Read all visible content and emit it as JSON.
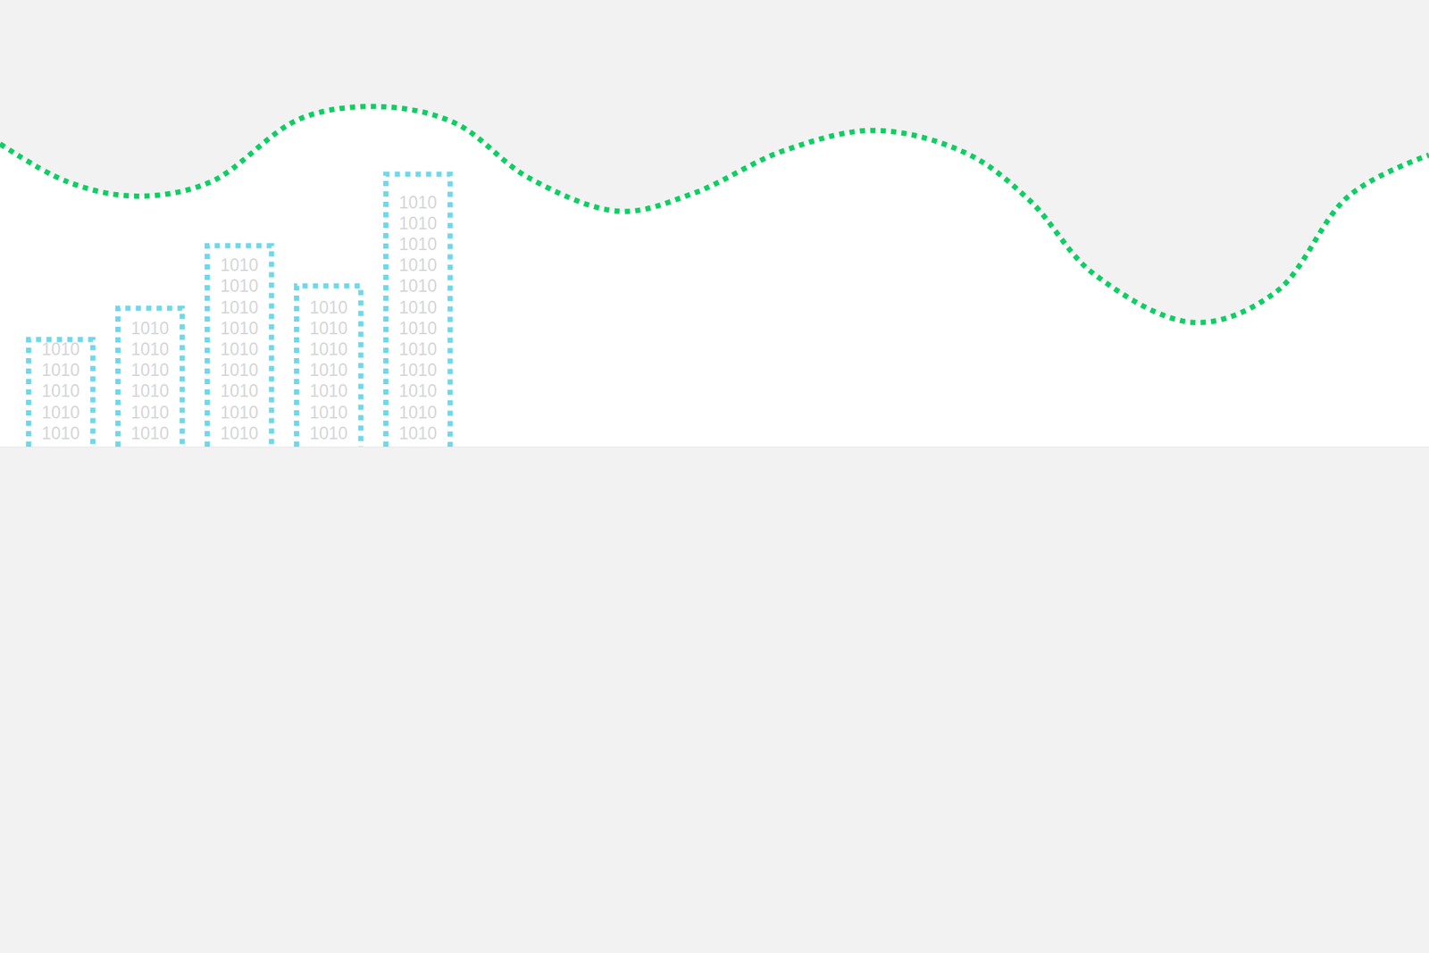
{
  "chart_data": {
    "type": "bar",
    "tick_labels": false,
    "grid": false,
    "xlim": [
      0,
      16
    ],
    "ylim": [
      0,
      100
    ],
    "xticks": [],
    "yticks": [],
    "series": [
      {
        "type": "line",
        "color": "#0dcf63",
        "line_style": "dotted",
        "x": [
          0,
          0.77,
          1.53,
          2.35,
          3.37,
          4.29,
          5.1,
          5.92,
          6.94,
          7.76,
          8.78,
          9.8,
          10.82,
          11.53,
          12.24,
          13.37,
          14.29,
          15.1,
          16
        ],
        "values": [
          67.8,
          59.2,
          56.1,
          59.2,
          73.5,
          76.1,
          72.4,
          60.2,
          52.7,
          56.7,
          66.3,
          70.8,
          65.7,
          55.1,
          38.8,
          27.8,
          34.7,
          56.1,
          65.3
        ]
      },
      {
        "type": "bar",
        "color": "#6fd8ea",
        "line_style": "dotted",
        "text": "1010",
        "x": [
          0.68,
          1.68,
          2.68,
          3.68,
          4.68
        ],
        "values": [
          24,
          31,
          45,
          36,
          61
        ]
      }
    ]
  }
}
